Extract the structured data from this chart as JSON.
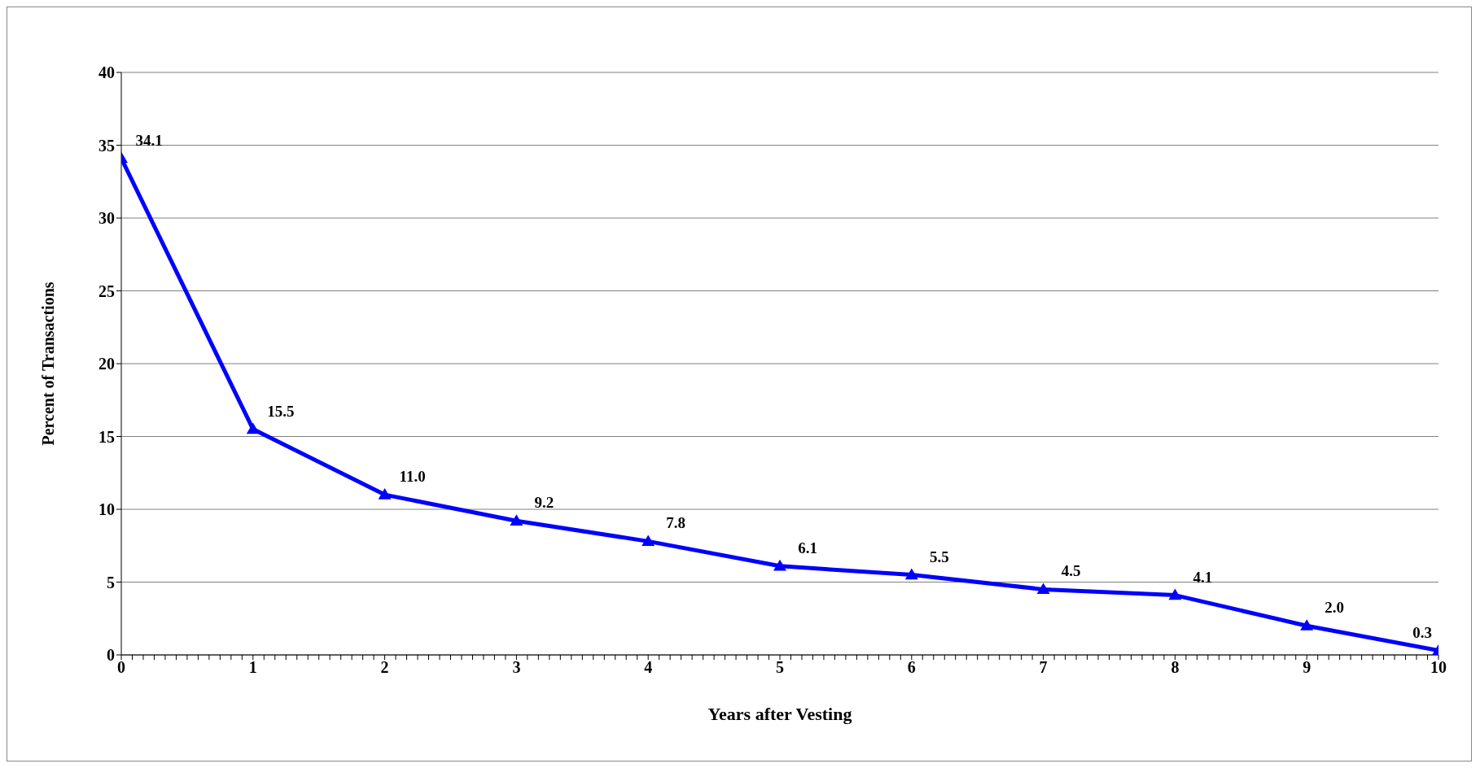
{
  "chart_data": {
    "type": "line",
    "xlabel": "Years after Vesting",
    "ylabel": "Percent of Transactions",
    "x": [
      0,
      1,
      2,
      3,
      4,
      5,
      6,
      7,
      8,
      9,
      10
    ],
    "series": [
      {
        "color": "#0000ff",
        "values": [
          34.1,
          15.5,
          11.0,
          9.2,
          7.8,
          6.1,
          5.5,
          4.5,
          4.1,
          2.0,
          0.3
        ],
        "value_labels": [
          "34.1",
          "15.5",
          "11.0",
          "9.2",
          "7.8",
          "6.1",
          "5.5",
          "4.5",
          "4.1",
          "2.0",
          "0.3"
        ]
      }
    ],
    "marker": "triangle",
    "line_style": "solid",
    "grid": "y",
    "legend": false,
    "xlim": [
      0,
      10
    ],
    "ylim": [
      0,
      40
    ],
    "yticks": [
      0,
      5,
      10,
      15,
      20,
      25,
      30,
      35,
      40
    ],
    "xticks": [
      0,
      {
        "value": 0.0833,
        "label": null
      },
      {
        "value": 0.1667,
        "label": null
      },
      {
        "value": 0.25,
        "label": null
      },
      {
        "value": 0.3333,
        "label": null
      },
      {
        "value": 0.4167,
        "label": null
      },
      {
        "value": 0.5,
        "label": null
      },
      {
        "value": 0.5833,
        "label": null
      },
      {
        "value": 0.6667,
        "label": null
      },
      {
        "value": 0.75,
        "label": null
      },
      {
        "value": 0.8333,
        "label": null
      },
      {
        "value": 0.9167,
        "label": null
      },
      1,
      {
        "value": 1.0833,
        "label": null
      },
      {
        "value": 1.1667,
        "label": null
      },
      {
        "value": 1.25,
        "label": null
      },
      {
        "value": 1.3333,
        "label": null
      },
      {
        "value": 1.4167,
        "label": null
      },
      {
        "value": 1.5,
        "label": null
      },
      {
        "value": 1.5833,
        "label": null
      },
      {
        "value": 1.6667,
        "label": null
      },
      {
        "value": 1.75,
        "label": null
      },
      {
        "value": 1.8333,
        "label": null
      },
      {
        "value": 1.9167,
        "label": null
      },
      2,
      {
        "value": 2.0833,
        "label": null
      },
      {
        "value": 2.1667,
        "label": null
      },
      {
        "value": 2.25,
        "label": null
      },
      {
        "value": 2.3333,
        "label": null
      },
      {
        "value": 2.4167,
        "label": null
      },
      {
        "value": 2.5,
        "label": null
      },
      {
        "value": 2.5833,
        "label": null
      },
      {
        "value": 2.6667,
        "label": null
      },
      {
        "value": 2.75,
        "label": null
      },
      {
        "value": 2.8333,
        "label": null
      },
      {
        "value": 2.9167,
        "label": null
      },
      3,
      {
        "value": 3.0833,
        "label": null
      },
      {
        "value": 3.1667,
        "label": null
      },
      {
        "value": 3.25,
        "label": null
      },
      {
        "value": 3.3333,
        "label": null
      },
      {
        "value": 3.4167,
        "label": null
      },
      {
        "value": 3.5,
        "label": null
      },
      {
        "value": 3.5833,
        "label": null
      },
      {
        "value": 3.6667,
        "label": null
      },
      {
        "value": 3.75,
        "label": null
      },
      {
        "value": 3.8333,
        "label": null
      },
      {
        "value": 3.9167,
        "label": null
      },
      4,
      {
        "value": 4.0833,
        "label": null
      },
      {
        "value": 4.1667,
        "label": null
      },
      {
        "value": 4.25,
        "label": null
      },
      {
        "value": 4.3333,
        "label": null
      },
      {
        "value": 4.4167,
        "label": null
      },
      {
        "value": 4.5,
        "label": null
      },
      {
        "value": 4.5833,
        "label": null
      },
      {
        "value": 4.6667,
        "label": null
      },
      {
        "value": 4.75,
        "label": null
      },
      {
        "value": 4.8333,
        "label": null
      },
      {
        "value": 4.9167,
        "label": null
      },
      5,
      {
        "value": 5.0833,
        "label": null
      },
      {
        "value": 5.1667,
        "label": null
      },
      {
        "value": 5.25,
        "label": null
      },
      {
        "value": 5.3333,
        "label": null
      },
      {
        "value": 5.4167,
        "label": null
      },
      {
        "value": 5.5,
        "label": null
      },
      {
        "value": 5.5833,
        "label": null
      },
      {
        "value": 5.6667,
        "label": null
      },
      {
        "value": 5.75,
        "label": null
      },
      {
        "value": 5.8333,
        "label": null
      },
      {
        "value": 5.9167,
        "label": null
      },
      6,
      {
        "value": 6.0833,
        "label": null
      },
      {
        "value": 6.1667,
        "label": null
      },
      {
        "value": 6.25,
        "label": null
      },
      {
        "value": 6.3333,
        "label": null
      },
      {
        "value": 6.4167,
        "label": null
      },
      {
        "value": 6.5,
        "label": null
      },
      {
        "value": 6.5833,
        "label": null
      },
      {
        "value": 6.6667,
        "label": null
      },
      {
        "value": 6.75,
        "label": null
      },
      {
        "value": 6.8333,
        "label": null
      },
      {
        "value": 6.9167,
        "label": null
      },
      7,
      {
        "value": 7.0833,
        "label": null
      },
      {
        "value": 7.1667,
        "label": null
      },
      {
        "value": 7.25,
        "label": null
      },
      {
        "value": 7.3333,
        "label": null
      },
      {
        "value": 7.4167,
        "label": null
      },
      {
        "value": 7.5,
        "label": null
      },
      {
        "value": 7.5833,
        "label": null
      },
      {
        "value": 7.6667,
        "label": null
      },
      {
        "value": 7.75,
        "label": null
      },
      {
        "value": 7.8333,
        "label": null
      },
      {
        "value": 7.9167,
        "label": null
      },
      8,
      {
        "value": 8.0833,
        "label": null
      },
      {
        "value": 8.1667,
        "label": null
      },
      {
        "value": 8.25,
        "label": null
      },
      {
        "value": 8.3333,
        "label": null
      },
      {
        "value": 8.4167,
        "label": null
      },
      {
        "value": 8.5,
        "label": null
      },
      {
        "value": 8.5833,
        "label": null
      },
      {
        "value": 8.6667,
        "label": null
      },
      {
        "value": 8.75,
        "label": null
      },
      {
        "value": 8.8333,
        "label": null
      },
      {
        "value": 8.9167,
        "label": null
      },
      9,
      {
        "value": 9.0833,
        "label": null
      },
      {
        "value": 9.1667,
        "label": null
      },
      {
        "value": 9.25,
        "label": null
      },
      {
        "value": 9.3333,
        "label": null
      },
      {
        "value": 9.4167,
        "label": null
      },
      {
        "value": 9.5,
        "label": null
      },
      {
        "value": 9.5833,
        "label": null
      },
      {
        "value": 9.6667,
        "label": null
      },
      {
        "value": 9.75,
        "label": null
      },
      {
        "value": 9.8333,
        "label": null
      },
      {
        "value": 9.9167,
        "label": null
      },
      10
    ]
  }
}
